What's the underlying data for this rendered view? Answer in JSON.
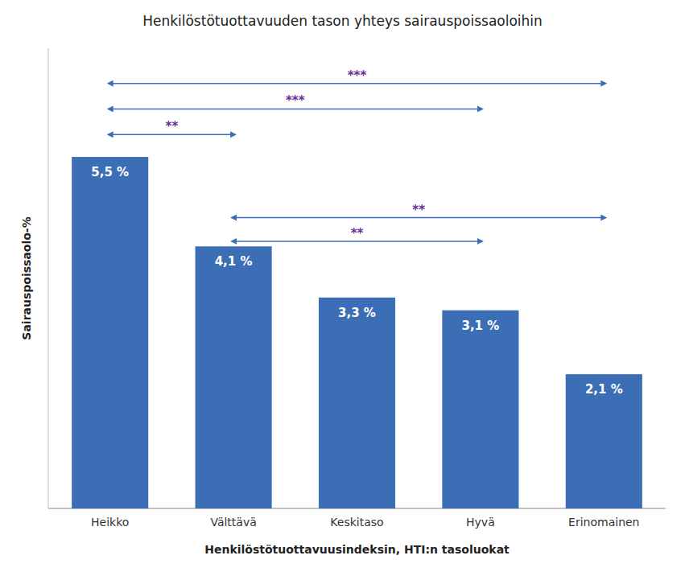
{
  "chart_data": {
    "type": "bar",
    "title": "Henkilöstötuottavuuden tason yhteys sairauspoissaoloihin",
    "x_label": "Henkilöstötuottavuusindeksin, HTI:n tasoluokat",
    "y_label": "Sairauspoissaolo-%",
    "categories": [
      "Heikko",
      "Välttävä",
      "Keskitaso",
      "Hyvä",
      "Erinomainen"
    ],
    "values": [
      5.5,
      4.1,
      3.3,
      3.1,
      2.1
    ],
    "value_labels": [
      "5,5 %",
      "4,1 %",
      "3,3 %",
      "3,1 %",
      "2,1 %"
    ],
    "data_labels": true,
    "color": "#3B6EB5",
    "ylim": [
      0,
      7.2
    ],
    "tick_labels": "x",
    "grid": false,
    "annotations": [
      {
        "text": "***",
        "from": "Heikko",
        "to": "Erinomainen",
        "y": 6.65
      },
      {
        "text": "***",
        "from": "Heikko",
        "to": "Hyvä",
        "y": 6.25
      },
      {
        "text": "**",
        "from": "Heikko",
        "to": "Välttävä",
        "y": 5.85
      },
      {
        "text": "**",
        "from": "Välttävä",
        "to": "Erinomainen",
        "y": 4.55
      },
      {
        "text": "**",
        "from": "Välttävä",
        "to": "Hyvä",
        "y": 4.18
      }
    ]
  }
}
